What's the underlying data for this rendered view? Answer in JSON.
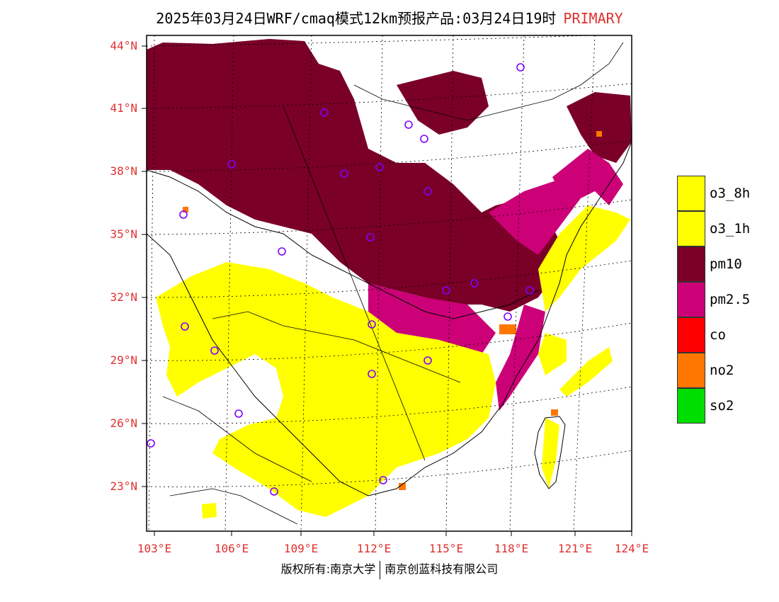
{
  "title": {
    "text": "2025年03月24日WRF/cmaq模式12km预报产品:03月24日19时",
    "tag": "PRIMARY"
  },
  "latitude_labels": [
    "44°N",
    "41°N",
    "38°N",
    "35°N",
    "32°N",
    "29°N",
    "26°N",
    "23°N"
  ],
  "longitude_labels": [
    "103°E",
    "106°E",
    "109°E",
    "112°E",
    "115°E",
    "118°E",
    "121°E",
    "124°E"
  ],
  "legend": [
    {
      "label": "o3_8h",
      "color": "#ffff00"
    },
    {
      "label": "o3_1h",
      "color": "#ffff00"
    },
    {
      "label": "pm10",
      "color": "#7a0028"
    },
    {
      "label": "pm2.5",
      "color": "#cc0077"
    },
    {
      "label": "co",
      "color": "#ff0000"
    },
    {
      "label": "no2",
      "color": "#ff7700"
    },
    {
      "label": "so2",
      "color": "#00dd00"
    }
  ],
  "footer": {
    "left": "版权所有:南京大学",
    "right": "南京创蓝科技有限公司"
  }
}
